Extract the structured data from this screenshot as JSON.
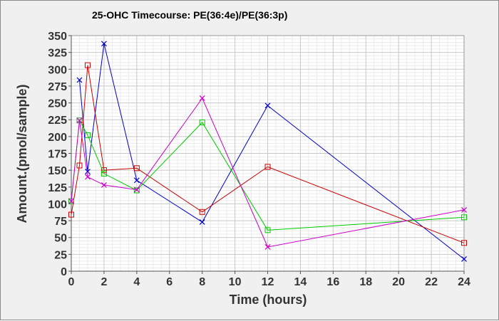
{
  "chart_data": {
    "type": "line",
    "title": "25-OHC Timecourse: PE(36:4e)/PE(36:3p)",
    "xlabel": "Time (hours)",
    "ylabel": "Amount.(pmol/sample)",
    "xlim": [
      0,
      24
    ],
    "ylim": [
      0,
      350
    ],
    "xticks": [
      0,
      2,
      4,
      6,
      8,
      10,
      12,
      14,
      16,
      18,
      20,
      22,
      24
    ],
    "yticks": [
      0,
      25,
      50,
      75,
      100,
      125,
      150,
      175,
      200,
      225,
      250,
      275,
      300,
      325,
      350
    ],
    "grid": true,
    "legend": "none",
    "series": [
      {
        "color": "#0000cc",
        "marker": "x",
        "x": [
          0.5,
          1,
          2,
          4,
          8,
          12,
          24
        ],
        "y": [
          284,
          148,
          338,
          135,
          73,
          246,
          18
        ]
      },
      {
        "color": "#cc0000",
        "marker": "square",
        "x": [
          0,
          0.5,
          1,
          2,
          4,
          8,
          12,
          24
        ],
        "y": [
          84,
          157,
          306,
          150,
          153,
          88,
          155,
          42
        ]
      },
      {
        "color": "#00cc00",
        "marker": "square",
        "x": [
          0,
          0.5,
          1,
          2,
          4,
          8,
          12,
          24
        ],
        "y": [
          104,
          224,
          202,
          145,
          120,
          221,
          61,
          80
        ]
      },
      {
        "color": "#cc00cc",
        "marker": "x",
        "x": [
          0,
          0.5,
          1,
          2,
          4,
          8,
          12,
          24
        ],
        "y": [
          104,
          224,
          140,
          128,
          121,
          257,
          36,
          91
        ]
      }
    ]
  }
}
